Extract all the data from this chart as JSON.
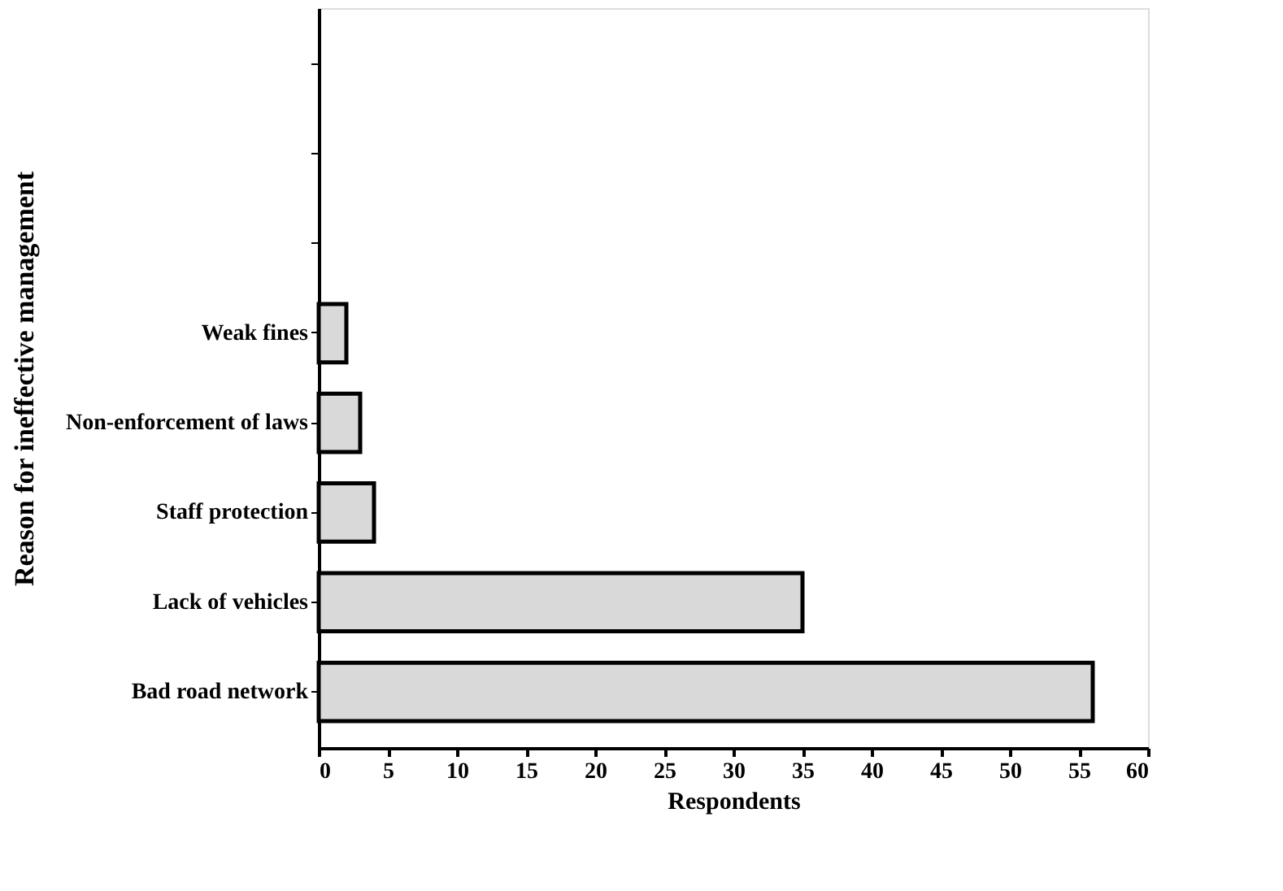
{
  "chart_data": {
    "type": "bar",
    "orientation": "horizontal",
    "xlabel": "Respondents",
    "ylabel": "Reason for ineffective management",
    "categories": [
      null,
      null,
      null,
      "Weak fines",
      "Non-enforcement of laws",
      "Staff protection",
      "Lack of vehicles",
      "Bad road network"
    ],
    "values": [
      null,
      null,
      null,
      2,
      3,
      4,
      35,
      56
    ],
    "color": "#d9d9d9",
    "xlim": [
      0,
      60
    ],
    "xticks": [
      0,
      5,
      10,
      15,
      20,
      25,
      30,
      35,
      40,
      45,
      50,
      55,
      60
    ],
    "grid": false
  }
}
